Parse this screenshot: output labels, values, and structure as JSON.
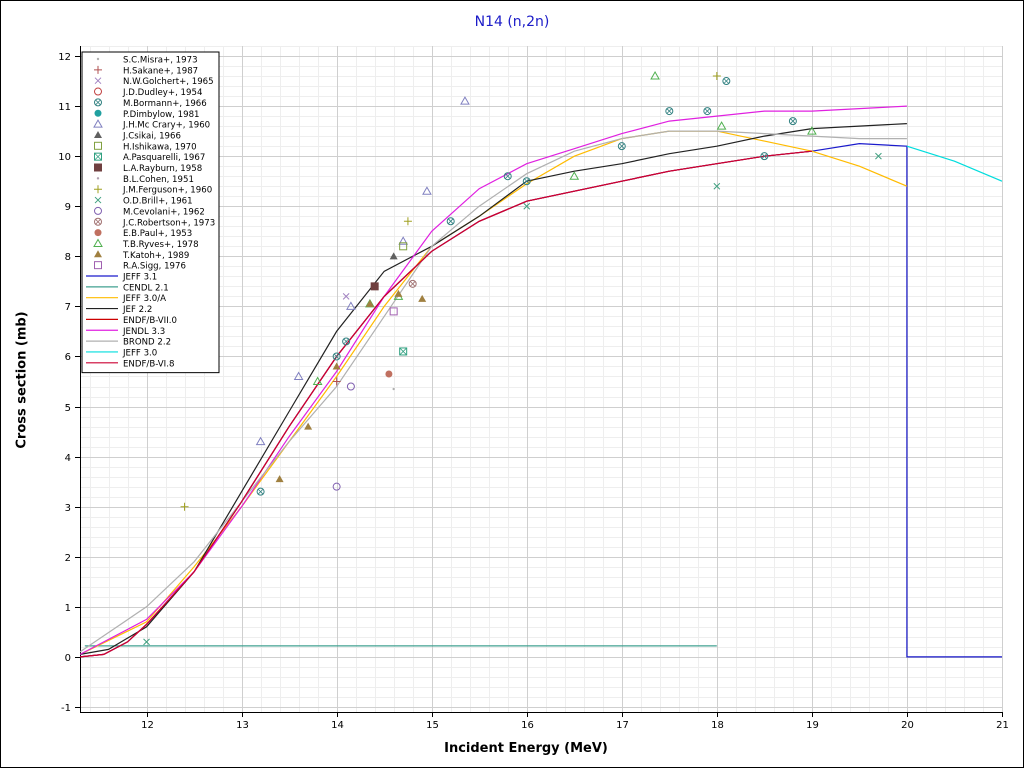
{
  "chart_data": {
    "type": "scatter",
    "title": "N14 (n,2n)",
    "xlabel": "Incident Energy (MeV)",
    "ylabel": "Cross section (mb)",
    "xlim": [
      11.3,
      21
    ],
    "ylim": [
      -1.1,
      12.2
    ],
    "x_ticks": [
      "12",
      "13",
      "14",
      "15",
      "16",
      "17",
      "18",
      "19",
      "20",
      "21"
    ],
    "y_ticks": [
      "-1",
      "0",
      "1",
      "2",
      "3",
      "4",
      "5",
      "6",
      "7",
      "8",
      "9",
      "10",
      "11",
      "12"
    ],
    "grid": true,
    "legend_position": "top-left",
    "experimental": [
      {
        "name": "S.C.Misra+, 1973",
        "marker": "dot",
        "color": "#b0b0b0",
        "points": [
          [
            14.6,
            5.35
          ]
        ]
      },
      {
        "name": "H.Sakane+, 1987",
        "marker": "plus",
        "color": "#b05050",
        "points": [
          [
            14.0,
            5.5
          ]
        ]
      },
      {
        "name": "N.W.Golchert+, 1965",
        "marker": "x",
        "color": "#a080c0",
        "points": [
          [
            14.1,
            7.2
          ]
        ]
      },
      {
        "name": "J.D.Dudley+, 1954",
        "marker": "circle",
        "color": "#c04040",
        "points": []
      },
      {
        "name": "M.Bormann+, 1966",
        "marker": "circle-x",
        "color": "#308080",
        "points": [
          [
            13.2,
            3.3
          ],
          [
            14.0,
            6.0
          ],
          [
            14.1,
            6.3
          ],
          [
            15.2,
            8.7
          ],
          [
            15.8,
            9.6
          ],
          [
            16.0,
            9.5
          ],
          [
            17.0,
            10.2
          ],
          [
            17.5,
            10.9
          ],
          [
            17.9,
            10.9
          ],
          [
            18.1,
            11.5
          ],
          [
            18.5,
            10.0
          ],
          [
            18.8,
            10.7
          ]
        ]
      },
      {
        "name": "P.Dimbylow, 1981",
        "marker": "filled-circle",
        "color": "#20a0a0",
        "points": []
      },
      {
        "name": "J.H.Mc Crary+, 1960",
        "marker": "triangle",
        "color": "#8080c0",
        "points": [
          [
            13.2,
            4.3
          ],
          [
            13.6,
            5.6
          ],
          [
            14.15,
            7.0
          ],
          [
            14.7,
            8.3
          ],
          [
            14.95,
            9.3
          ],
          [
            15.35,
            11.1
          ]
        ]
      },
      {
        "name": "J.Csikai, 1966",
        "marker": "filled-triangle",
        "color": "#606060",
        "points": [
          [
            14.6,
            8.0
          ]
        ]
      },
      {
        "name": "H.Ishikawa, 1970",
        "marker": "square",
        "color": "#80a040",
        "points": [
          [
            14.7,
            8.2
          ]
        ]
      },
      {
        "name": "A.Pasquarelli, 1967",
        "marker": "square-x",
        "color": "#30a080",
        "points": [
          [
            14.7,
            6.1
          ]
        ]
      },
      {
        "name": "L.A.Rayburn, 1958",
        "marker": "filled-square",
        "color": "#704040",
        "points": [
          [
            14.4,
            7.4
          ]
        ]
      },
      {
        "name": "B.L.Cohen, 1951",
        "marker": "dot",
        "color": "#b0a0b0",
        "points": []
      },
      {
        "name": "J.M.Ferguson+, 1960",
        "marker": "plus",
        "color": "#a0a020",
        "points": [
          [
            12.4,
            3.0
          ],
          [
            14.75,
            8.7
          ],
          [
            18.0,
            11.6
          ]
        ]
      },
      {
        "name": "O.D.Brill+, 1961",
        "marker": "x",
        "color": "#40a080",
        "points": [
          [
            12.0,
            0.3
          ],
          [
            16.0,
            9.0
          ],
          [
            18.0,
            9.4
          ],
          [
            19.7,
            10.0
          ]
        ]
      },
      {
        "name": "M.Cevolani+, 1962",
        "marker": "circle",
        "color": "#8060b0",
        "points": [
          [
            14.0,
            3.4
          ],
          [
            14.15,
            5.4
          ]
        ]
      },
      {
        "name": "J.C.Robertson+, 1973",
        "marker": "circle-x",
        "color": "#a07070",
        "points": [
          [
            14.8,
            7.45
          ]
        ]
      },
      {
        "name": "E.B.Paul+, 1953",
        "marker": "filled-circle",
        "color": "#c07060",
        "points": [
          [
            14.55,
            5.65
          ]
        ]
      },
      {
        "name": "T.B.Ryves+, 1978",
        "marker": "triangle",
        "color": "#50b050",
        "points": [
          [
            13.8,
            5.5
          ],
          [
            14.35,
            7.05
          ],
          [
            14.65,
            7.2
          ],
          [
            16.5,
            9.6
          ],
          [
            17.35,
            11.6
          ],
          [
            18.05,
            10.6
          ],
          [
            19.0,
            10.5
          ]
        ]
      },
      {
        "name": "T.Katoh+, 1989",
        "marker": "filled-triangle",
        "color": "#a08040",
        "points": [
          [
            13.4,
            3.55
          ],
          [
            13.7,
            4.6
          ],
          [
            14.0,
            5.8
          ],
          [
            14.35,
            7.05
          ],
          [
            14.65,
            7.25
          ],
          [
            14.9,
            7.15
          ]
        ]
      },
      {
        "name": "R.A.Sigg, 1976",
        "marker": "square",
        "color": "#a060b0",
        "points": [
          [
            14.6,
            6.9
          ]
        ]
      }
    ],
    "evaluated": [
      {
        "name": "JEFF 3.1",
        "color": "#1a1acc",
        "points": [
          [
            11.3,
            0
          ],
          [
            11.55,
            0.05
          ],
          [
            11.8,
            0.3
          ],
          [
            12.0,
            0.65
          ],
          [
            12.2,
            1.05
          ],
          [
            12.5,
            1.7
          ],
          [
            13.0,
            3.1
          ],
          [
            13.5,
            4.6
          ],
          [
            14.0,
            6.0
          ],
          [
            14.5,
            7.2
          ],
          [
            15.0,
            8.1
          ],
          [
            15.5,
            8.7
          ],
          [
            16.0,
            9.1
          ],
          [
            16.5,
            9.3
          ],
          [
            17.0,
            9.5
          ],
          [
            17.5,
            9.7
          ],
          [
            18.0,
            9.85
          ],
          [
            18.5,
            10.0
          ],
          [
            19.0,
            10.1
          ],
          [
            19.5,
            10.25
          ],
          [
            20.0,
            10.2
          ],
          [
            20.0,
            0
          ],
          [
            21.0,
            0
          ]
        ]
      },
      {
        "name": "CENDL 2.1",
        "color": "#40a090",
        "points": [
          [
            11.35,
            0.22
          ],
          [
            18.0,
            0.22
          ]
        ]
      },
      {
        "name": "JEFF 3.0/A",
        "color": "#ffbb00",
        "points": [
          [
            11.3,
            0.05
          ],
          [
            12.0,
            0.7
          ],
          [
            12.5,
            1.8
          ],
          [
            13.0,
            3.0
          ],
          [
            13.5,
            4.3
          ],
          [
            14.0,
            5.6
          ],
          [
            14.5,
            7.0
          ],
          [
            15.0,
            8.2
          ],
          [
            15.5,
            8.8
          ],
          [
            16.0,
            9.45
          ],
          [
            16.5,
            10.0
          ],
          [
            17.0,
            10.35
          ],
          [
            17.5,
            10.5
          ],
          [
            18.0,
            10.5
          ],
          [
            18.5,
            10.3
          ],
          [
            19.0,
            10.1
          ],
          [
            19.5,
            9.8
          ],
          [
            20.0,
            9.4
          ]
        ]
      },
      {
        "name": "JEF 2.2",
        "color": "#222222",
        "points": [
          [
            11.3,
            0.05
          ],
          [
            11.6,
            0.15
          ],
          [
            12.0,
            0.6
          ],
          [
            12.5,
            1.7
          ],
          [
            13.0,
            3.3
          ],
          [
            13.5,
            4.9
          ],
          [
            14.0,
            6.5
          ],
          [
            14.5,
            7.7
          ],
          [
            15.0,
            8.2
          ],
          [
            15.5,
            8.8
          ],
          [
            16.0,
            9.5
          ],
          [
            16.5,
            9.7
          ],
          [
            17.0,
            9.85
          ],
          [
            17.5,
            10.05
          ],
          [
            18.0,
            10.2
          ],
          [
            18.5,
            10.4
          ],
          [
            19.0,
            10.55
          ],
          [
            19.5,
            10.6
          ],
          [
            20.0,
            10.65
          ]
        ]
      },
      {
        "name": "ENDF/B-VII.0",
        "color": "#cc0000",
        "points": [
          [
            11.3,
            0.0
          ],
          [
            11.55,
            0.05
          ],
          [
            11.8,
            0.3
          ],
          [
            12.0,
            0.65
          ],
          [
            12.5,
            1.7
          ],
          [
            13.0,
            3.1
          ],
          [
            13.5,
            4.6
          ],
          [
            14.0,
            6.0
          ],
          [
            14.5,
            7.2
          ],
          [
            15.0,
            8.1
          ],
          [
            15.5,
            8.7
          ],
          [
            16.0,
            9.1
          ],
          [
            16.5,
            9.3
          ],
          [
            17.0,
            9.5
          ],
          [
            17.5,
            9.7
          ],
          [
            18.0,
            9.85
          ],
          [
            18.5,
            10.0
          ],
          [
            19.0,
            10.1
          ]
        ]
      },
      {
        "name": "JENDL 3.3",
        "color": "#e020e0",
        "points": [
          [
            11.3,
            0.05
          ],
          [
            12.0,
            0.75
          ],
          [
            12.5,
            1.7
          ],
          [
            13.0,
            3.0
          ],
          [
            13.5,
            4.4
          ],
          [
            14.0,
            5.7
          ],
          [
            14.5,
            7.2
          ],
          [
            15.0,
            8.5
          ],
          [
            15.5,
            9.35
          ],
          [
            16.0,
            9.85
          ],
          [
            16.5,
            10.15
          ],
          [
            17.0,
            10.45
          ],
          [
            17.5,
            10.7
          ],
          [
            18.0,
            10.8
          ],
          [
            18.5,
            10.9
          ],
          [
            19.0,
            10.9
          ],
          [
            19.5,
            10.95
          ],
          [
            20.0,
            11.0
          ]
        ]
      },
      {
        "name": "BROND 2.2",
        "color": "#b0b0b0",
        "points": [
          [
            11.3,
            0.1
          ],
          [
            12.0,
            1.0
          ],
          [
            12.5,
            1.9
          ],
          [
            13.0,
            3.1
          ],
          [
            13.5,
            4.3
          ],
          [
            14.0,
            5.4
          ],
          [
            14.5,
            6.8
          ],
          [
            15.0,
            8.2
          ],
          [
            15.5,
            9.0
          ],
          [
            16.0,
            9.65
          ],
          [
            16.5,
            10.1
          ],
          [
            17.0,
            10.35
          ],
          [
            17.5,
            10.5
          ],
          [
            18.0,
            10.5
          ],
          [
            18.5,
            10.45
          ],
          [
            19.0,
            10.4
          ],
          [
            19.5,
            10.35
          ],
          [
            20.0,
            10.35
          ]
        ]
      },
      {
        "name": "JEFF 3.0",
        "color": "#00dddd",
        "points": [
          [
            20.0,
            10.2
          ],
          [
            20.5,
            9.9
          ],
          [
            21.0,
            9.5
          ]
        ]
      },
      {
        "name": "ENDF/B-VI.8",
        "color": "#cc0033",
        "points": [
          [
            11.3,
            0.0
          ],
          [
            11.55,
            0.05
          ],
          [
            11.8,
            0.3
          ],
          [
            12.0,
            0.65
          ],
          [
            12.5,
            1.7
          ],
          [
            13.0,
            3.1
          ],
          [
            13.5,
            4.6
          ],
          [
            14.0,
            6.0
          ],
          [
            14.5,
            7.2
          ],
          [
            15.0,
            8.1
          ],
          [
            15.5,
            8.7
          ],
          [
            16.0,
            9.1
          ],
          [
            16.5,
            9.3
          ],
          [
            17.0,
            9.5
          ],
          [
            17.5,
            9.7
          ],
          [
            18.0,
            9.85
          ],
          [
            18.5,
            10.0
          ],
          [
            19.0,
            10.1
          ]
        ]
      }
    ]
  }
}
